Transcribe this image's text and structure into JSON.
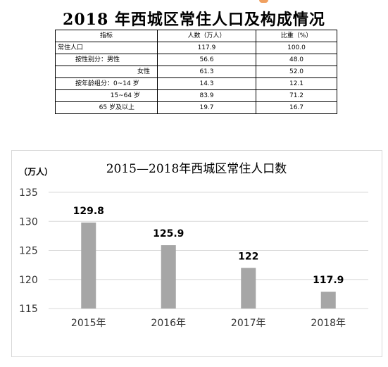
{
  "title": "2018 年西城区常住人口及构成情况",
  "table": {
    "headers": [
      "指标",
      "人数（万人）",
      "比重（%）"
    ],
    "rows": [
      {
        "label": "常住人口",
        "count": "117.9",
        "share": "100.0"
      },
      {
        "label": "按性别分：男性",
        "count": "56.6",
        "share": "48.0"
      },
      {
        "label": "女性",
        "count": "61.3",
        "share": "52.0"
      },
      {
        "label": "按年龄组分：0~14 岁",
        "count": "14.3",
        "share": "12.1"
      },
      {
        "label": "15~64 岁",
        "count": "83.9",
        "share": "71.2"
      },
      {
        "label": "65 岁及以上",
        "count": "19.7",
        "share": "16.7"
      }
    ]
  },
  "chart_data": {
    "type": "bar",
    "title": "2015—2018年西城区常住人口数",
    "ylabel": "（万人）",
    "categories": [
      "2015年",
      "2016年",
      "2017年",
      "2018年"
    ],
    "values": [
      129.8,
      125.9,
      122,
      117.9
    ],
    "data_labels": [
      "129.8",
      "125.9",
      "122",
      "117.9"
    ],
    "ylim": [
      115,
      135
    ],
    "yticks": [
      115,
      120,
      125,
      130,
      135
    ],
    "grid": true,
    "bar_color": "#a6a6a6",
    "grid_color": "#d9d9d9"
  }
}
